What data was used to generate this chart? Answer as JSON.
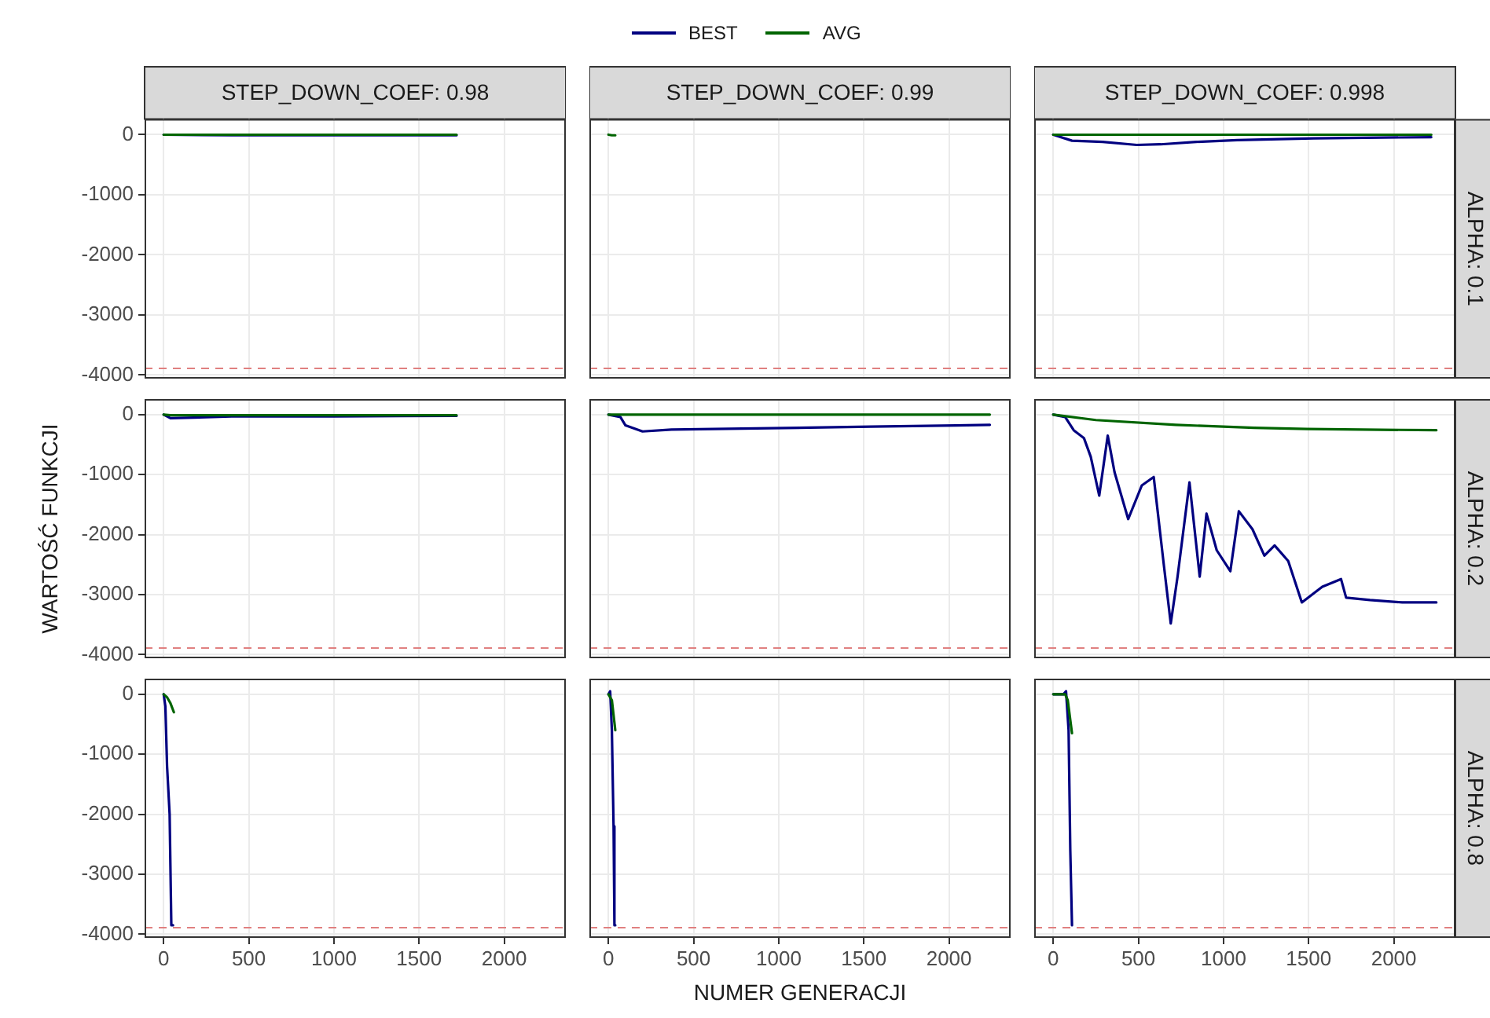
{
  "chart_data": [
    {
      "type": "line",
      "title": "STEP_DOWN_COEF: 0.98",
      "x": [
        0,
        400,
        1000,
        1720
      ],
      "series": [
        {
          "color": "#000080",
          "values": [
            0,
            -10,
            -10,
            -10
          ]
        },
        {
          "color": "#006400",
          "values": [
            0,
            0,
            0,
            0
          ]
        }
      ],
      "xlim": [
        -112,
        2362
      ],
      "ylim": [
        -4060,
        260
      ],
      "xticks": [
        0,
        500,
        1000,
        1500,
        2000
      ],
      "yticks": [
        0,
        -1000,
        -2000,
        -3000,
        -4000
      ],
      "grid": true,
      "marker": "none",
      "tick_labels": "y",
      "ref_lines": [
        {
          "axis": "y",
          "value": -3890,
          "color": "#e08080",
          "line_style": "dashed"
        }
      ]
    },
    {
      "type": "line",
      "title": "STEP_DOWN_COEF: 0.99",
      "x": [
        0,
        20,
        40
      ],
      "series": [
        {
          "name": "BEST",
          "color": "#000080",
          "values": [
            null,
            null,
            null
          ]
        },
        {
          "name": "AVG",
          "color": "#006400",
          "values": [
            0,
            -10,
            -10
          ]
        }
      ],
      "xlim": [
        -112,
        2362
      ],
      "ylim": [
        -4060,
        260
      ],
      "xticks": [
        0,
        500,
        1000,
        1500,
        2000
      ],
      "yticks": [
        0,
        -1000,
        -2000,
        -3000,
        -4000
      ],
      "grid": true,
      "marker": "none",
      "tick_labels": false,
      "legend": "top",
      "ref_lines": [
        {
          "axis": "y",
          "value": -3890,
          "color": "#e08080",
          "line_style": "dashed"
        }
      ]
    },
    {
      "type": "line",
      "title": "STEP_DOWN_COEF: 0.998",
      "annotations": [
        "ALPHA: 0.1"
      ],
      "x": [
        0,
        110,
        290,
        490,
        630,
        840,
        1080,
        1530,
        2220
      ],
      "series": [
        {
          "color": "#000080",
          "values": [
            0,
            -100,
            -120,
            -170,
            -160,
            -120,
            -90,
            -60,
            -40
          ]
        },
        {
          "color": "#006400",
          "values": [
            0,
            0,
            0,
            0,
            0,
            0,
            0,
            0,
            0
          ]
        }
      ],
      "xlim": [
        -112,
        2362
      ],
      "ylim": [
        -4060,
        260
      ],
      "xticks": [
        0,
        500,
        1000,
        1500,
        2000
      ],
      "yticks": [
        0,
        -1000,
        -2000,
        -3000,
        -4000
      ],
      "grid": true,
      "marker": "none",
      "tick_labels": false,
      "ref_lines": [
        {
          "axis": "y",
          "value": -3890,
          "color": "#e08080",
          "line_style": "dashed"
        }
      ]
    },
    {
      "type": "line",
      "ylabel": "WARTOŚĆ FUNKCJI",
      "x": [
        0,
        40,
        400,
        1000,
        1720
      ],
      "series": [
        {
          "color": "#000080",
          "values": [
            0,
            -60,
            -30,
            -30,
            -20
          ]
        },
        {
          "color": "#006400",
          "values": [
            0,
            -10,
            -10,
            -10,
            -10
          ]
        }
      ],
      "xlim": [
        -112,
        2362
      ],
      "ylim": [
        -4060,
        260
      ],
      "xticks": [
        0,
        500,
        1000,
        1500,
        2000
      ],
      "yticks": [
        0,
        -1000,
        -2000,
        -3000,
        -4000
      ],
      "grid": true,
      "marker": "none",
      "tick_labels": "y",
      "ref_lines": [
        {
          "axis": "y",
          "value": -3890,
          "color": "#e08080",
          "line_style": "dashed"
        }
      ]
    },
    {
      "type": "line",
      "x": [
        0,
        70,
        100,
        200,
        370,
        870,
        1540,
        2040,
        2240
      ],
      "series": [
        {
          "color": "#000080",
          "values": [
            0,
            -40,
            -180,
            -280,
            -250,
            -230,
            -200,
            -180,
            -170
          ]
        },
        {
          "color": "#006400",
          "values": [
            0,
            0,
            0,
            0,
            0,
            0,
            0,
            0,
            0
          ]
        }
      ],
      "xlim": [
        -112,
        2362
      ],
      "ylim": [
        -4060,
        260
      ],
      "xticks": [
        0,
        500,
        1000,
        1500,
        2000
      ],
      "yticks": [
        0,
        -1000,
        -2000,
        -3000,
        -4000
      ],
      "grid": true,
      "marker": "none",
      "tick_labels": false,
      "ref_lines": [
        {
          "axis": "y",
          "value": -3890,
          "color": "#e08080",
          "line_style": "dashed"
        }
      ]
    },
    {
      "type": "line",
      "annotations": [
        "ALPHA: 0.2"
      ],
      "series": [
        {
          "color": "#000080",
          "x": [
            0,
            70,
            120,
            180,
            220,
            270,
            320,
            360,
            440,
            520,
            590,
            650,
            690,
            730,
            800,
            860,
            900,
            960,
            1040,
            1090,
            1170,
            1240,
            1300,
            1380,
            1460,
            1580,
            1690,
            1720,
            1860,
            2050,
            2250
          ],
          "values": [
            0,
            -40,
            -260,
            -390,
            -700,
            -1350,
            -350,
            -960,
            -1740,
            -1180,
            -1040,
            -2520,
            -3480,
            -2700,
            -1130,
            -2700,
            -1650,
            -2260,
            -2610,
            -1610,
            -1910,
            -2350,
            -2180,
            -2440,
            -3130,
            -2870,
            -2740,
            -3050,
            -3090,
            -3130,
            -3130
          ]
        },
        {
          "color": "#006400",
          "x": [
            0,
            250,
            720,
            1180,
            1490,
            2250
          ],
          "values": [
            0,
            -90,
            -170,
            -220,
            -240,
            -260
          ]
        }
      ],
      "xlim": [
        -112,
        2362
      ],
      "ylim": [
        -4060,
        260
      ],
      "xticks": [
        0,
        500,
        1000,
        1500,
        2000
      ],
      "yticks": [
        0,
        -1000,
        -2000,
        -3000,
        -4000
      ],
      "grid": true,
      "marker": "none",
      "tick_labels": false,
      "ref_lines": [
        {
          "axis": "y",
          "value": -3890,
          "color": "#e08080",
          "line_style": "dashed"
        }
      ]
    },
    {
      "type": "line",
      "series": [
        {
          "color": "#000080",
          "x": [
            0,
            10,
            20,
            35,
            45,
            55
          ],
          "values": [
            0,
            -200,
            -1200,
            -2000,
            -3850,
            -3850
          ]
        },
        {
          "color": "#006400",
          "x": [
            0,
            20,
            40,
            60
          ],
          "values": [
            0,
            -50,
            -150,
            -300
          ]
        }
      ],
      "xlim": [
        -112,
        2362
      ],
      "ylim": [
        -4060,
        260
      ],
      "xticks": [
        0,
        500,
        1000,
        1500,
        2000
      ],
      "yticks": [
        0,
        -1000,
        -2000,
        -3000,
        -4000
      ],
      "grid": true,
      "marker": "none",
      "ref_lines": [
        {
          "axis": "y",
          "value": -3890,
          "color": "#e08080",
          "line_style": "dashed"
        }
      ]
    },
    {
      "type": "line",
      "xlabel": "NUMER GENERACJI",
      "series": [
        {
          "color": "#000080",
          "x": [
            0,
            10,
            20,
            30,
            35,
            40
          ],
          "values": [
            0,
            50,
            -600,
            -2200,
            -3850,
            -3850
          ]
        },
        {
          "color": "#006400",
          "x": [
            0,
            20,
            40
          ],
          "values": [
            0,
            -100,
            -600
          ]
        }
      ],
      "xlim": [
        -112,
        2362
      ],
      "ylim": [
        -4060,
        260
      ],
      "xticks": [
        0,
        500,
        1000,
        1500,
        2000
      ],
      "yticks": [
        0,
        -1000,
        -2000,
        -3000,
        -4000
      ],
      "grid": true,
      "marker": "none",
      "tick_labels": "x",
      "ref_lines": [
        {
          "axis": "y",
          "value": -3890,
          "color": "#e08080",
          "line_style": "dashed"
        }
      ]
    },
    {
      "type": "line",
      "annotations": [
        "ALPHA: 0.8"
      ],
      "series": [
        {
          "color": "#000080",
          "x": [
            0,
            60,
            75,
            90,
            100,
            110
          ],
          "values": [
            0,
            0,
            50,
            -600,
            -2600,
            -3850
          ]
        },
        {
          "color": "#006400",
          "x": [
            0,
            70,
            85,
            110
          ],
          "values": [
            0,
            0,
            -100,
            -650
          ]
        }
      ],
      "xlim": [
        -112,
        2362
      ],
      "ylim": [
        -4060,
        260
      ],
      "xticks": [
        0,
        500,
        1000,
        1500,
        2000
      ],
      "yticks": [
        0,
        -1000,
        -2000,
        -3000,
        -4000
      ],
      "grid": true,
      "marker": "none",
      "tick_labels": "x",
      "ref_lines": [
        {
          "axis": "y",
          "value": -3890,
          "color": "#e08080",
          "line_style": "dashed"
        }
      ]
    }
  ]
}
